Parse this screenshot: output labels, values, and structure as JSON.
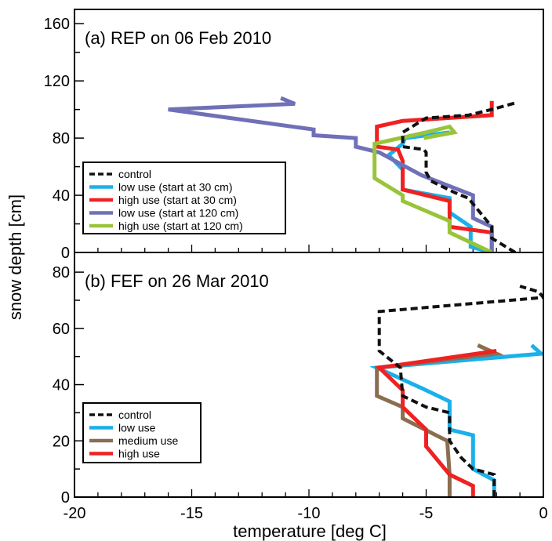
{
  "figure": {
    "xlabel": "temperature [deg C]",
    "ylabel": "snow depth [cm]"
  },
  "chart_data": [
    {
      "type": "line",
      "title": "(a) REP on 06 Feb 2010",
      "xlabel": "temperature [deg C]",
      "ylabel": "snow depth [cm]",
      "xlim": [
        -20,
        0
      ],
      "ylim": [
        0,
        170
      ],
      "y_ticks": [
        "0",
        "40",
        "80",
        "120",
        "160"
      ],
      "legend_position": "lower-left",
      "series": [
        {
          "name": "control",
          "color": "#111111",
          "dash": true,
          "x": [
            -1.2,
            -2.2,
            -2.2,
            -3.2,
            -3.8,
            -4.8,
            -5.0,
            -5.0,
            -5.1,
            -6.0,
            -6.0,
            -5.0,
            -3.2,
            -2.2,
            -1.1
          ],
          "y": [
            0,
            10,
            18,
            38,
            42,
            50,
            56,
            70,
            72,
            74,
            84,
            94,
            96,
            100,
            105
          ]
        },
        {
          "name": "low use (start at 30 cm)",
          "color": "#1ab0ea",
          "x": [
            -2.2,
            -3.1,
            -3.1,
            -4.0,
            -4.0,
            -6.0,
            -6.0,
            -6.6,
            -6.0,
            -5.9,
            -4.0
          ],
          "y": [
            0,
            4,
            18,
            28,
            38,
            44,
            58,
            68,
            76,
            80,
            84
          ]
        },
        {
          "name": "high use (start at 30 cm)",
          "color": "#ee2222",
          "x": [
            -2.2,
            -2.2,
            -4.0,
            -4.0,
            -6.0,
            -6.0,
            -6.2,
            -7.1,
            -7.1,
            -6.0,
            -2.2,
            -2.2
          ],
          "y": [
            0,
            14,
            18,
            36,
            44,
            64,
            72,
            74,
            88,
            92,
            96,
            106
          ]
        },
        {
          "name": "low use (start at 120 cm)",
          "color": "#7070b8",
          "x": [
            -2.2,
            -2.2,
            -3.0,
            -3.0,
            -5.2,
            -7.0,
            -8.0,
            -8.0,
            -9.8,
            -9.8,
            -16.0,
            -10.6,
            -11.2
          ],
          "y": [
            0,
            18,
            24,
            40,
            54,
            70,
            74,
            80,
            82,
            86,
            100,
            104,
            108
          ]
        },
        {
          "name": "high use (start at 120 cm)",
          "color": "#99c43a",
          "x": [
            -2.2,
            -4.0,
            -4.0,
            -6.0,
            -6.0,
            -7.2,
            -7.2,
            -5.0,
            -4.0,
            -3.8,
            -5.1
          ],
          "y": [
            0,
            14,
            22,
            36,
            40,
            52,
            76,
            84,
            88,
            84,
            80
          ]
        }
      ]
    },
    {
      "type": "line",
      "title": "(b) FEF on 26 Mar 2010",
      "xlabel": "temperature [deg C]",
      "ylabel": "snow depth [cm]",
      "xlim": [
        -20,
        0
      ],
      "ylim": [
        0,
        87
      ],
      "x_ticks": [
        "-20",
        "-15",
        "-10",
        "-5",
        "0"
      ],
      "y_ticks": [
        "0",
        "20",
        "40",
        "60",
        "80"
      ],
      "legend_position": "lower-left",
      "series": [
        {
          "name": "control",
          "color": "#111111",
          "dash": true,
          "x": [
            -2.1,
            -2.1,
            -3.0,
            -3.5,
            -4.0,
            -4.0,
            -5.0,
            -6.0,
            -6.1,
            -7.0,
            -7.0,
            0.0,
            -0.2,
            -1.0
          ],
          "y": [
            0,
            8,
            10,
            14,
            20,
            30,
            32,
            36,
            46,
            52,
            66,
            71,
            73,
            75
          ]
        },
        {
          "name": "low use",
          "color": "#1ab0ea",
          "x": [
            -2.1,
            -2.1,
            -3.0,
            -3.0,
            -4.0,
            -4.0,
            -5.0,
            -7.1,
            -0.1,
            -0.5
          ],
          "y": [
            0,
            6,
            10,
            22,
            24,
            34,
            38,
            46,
            51,
            54
          ]
        },
        {
          "name": "medium use",
          "color": "#8b6e50",
          "x": [
            -4.0,
            -4.0,
            -4.1,
            -6.0,
            -6.0,
            -7.1,
            -7.1,
            -2.0,
            -2.8
          ],
          "y": [
            0,
            8,
            20,
            28,
            32,
            36,
            46,
            51,
            54
          ]
        },
        {
          "name": "high use",
          "color": "#ee2222",
          "x": [
            -3.0,
            -3.0,
            -4.0,
            -5.0,
            -5.0,
            -6.0,
            -6.0,
            -7.0,
            -2.0
          ],
          "y": [
            0,
            4,
            8,
            18,
            24,
            32,
            38,
            46,
            52
          ]
        }
      ]
    }
  ]
}
